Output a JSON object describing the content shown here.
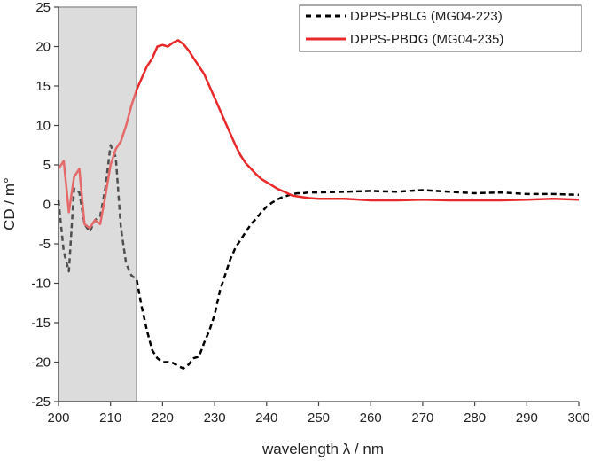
{
  "chart_data": {
    "type": "line",
    "xlabel": "wavelength λ / nm",
    "ylabel": "CD / m°",
    "xlim": [
      200,
      300
    ],
    "ylim": [
      -25,
      25
    ],
    "xticks": [
      200,
      210,
      220,
      230,
      240,
      250,
      260,
      270,
      280,
      290,
      300
    ],
    "yticks": [
      25,
      20,
      15,
      10,
      5,
      0,
      -5,
      -10,
      -15,
      -20,
      -25
    ],
    "xtick_labels": [
      "200",
      "210",
      "220",
      "230",
      "240",
      "250",
      "260",
      "270",
      "280",
      "290",
      "300"
    ],
    "ytick_labels": [
      "25",
      "20",
      "15",
      "10",
      "5",
      "0",
      "-5",
      "-10",
      "-15",
      "-20",
      "-25"
    ],
    "shaded_region": {
      "x": [
        200,
        215
      ],
      "color": "#d9d9d9"
    },
    "grid": false,
    "legend_position": "top-right",
    "series": [
      {
        "legend_parts": [
          "DPPS-PB",
          "L",
          "G (MG04-223)"
        ],
        "color": "#000000",
        "style": "dashed",
        "x": [
          200,
          201,
          202,
          203,
          204,
          205,
          206,
          207,
          208,
          209,
          210,
          211,
          212,
          213,
          214,
          215,
          216,
          217,
          218,
          219,
          220,
          221,
          222,
          223,
          224,
          225,
          226,
          227,
          228,
          229,
          230,
          231,
          232,
          233,
          234,
          235,
          236,
          237,
          238,
          239,
          240,
          241,
          242,
          243,
          244,
          245,
          246,
          247,
          248,
          250,
          255,
          260,
          265,
          270,
          275,
          280,
          285,
          290,
          295,
          300
        ],
        "y": [
          0.5,
          -6,
          -8.5,
          2,
          1.5,
          -2.5,
          -3.5,
          -2,
          -1.5,
          2,
          7.5,
          6,
          -3,
          -7.5,
          -9,
          -9.5,
          -13,
          -16,
          -18.5,
          -19.5,
          -20,
          -20,
          -20.1,
          -20.5,
          -20.8,
          -20.3,
          -19.5,
          -19.3,
          -17.5,
          -16,
          -14,
          -11,
          -9,
          -7,
          -5.5,
          -4.5,
          -3.5,
          -2.5,
          -1.8,
          -1,
          -0.3,
          0.2,
          0.6,
          0.9,
          1.1,
          1.3,
          1.4,
          1.4,
          1.5,
          1.5,
          1.6,
          1.7,
          1.6,
          1.8,
          1.6,
          1.4,
          1.5,
          1.3,
          1.3,
          1.2
        ]
      },
      {
        "legend_parts": [
          "DPPS-PB",
          "D",
          "G (MG04-235)"
        ],
        "color": "#e8292a",
        "style": "solid",
        "x": [
          200,
          201,
          202,
          203,
          204,
          205,
          206,
          207,
          208,
          209,
          210,
          211,
          212,
          213,
          214,
          215,
          216,
          217,
          218,
          219,
          220,
          221,
          222,
          223,
          224,
          225,
          226,
          227,
          228,
          229,
          230,
          231,
          232,
          233,
          234,
          235,
          236,
          237,
          238,
          239,
          240,
          241,
          242,
          243,
          244,
          245,
          246,
          247,
          248,
          250,
          255,
          260,
          265,
          270,
          275,
          280,
          285,
          290,
          295,
          300
        ],
        "y": [
          4.5,
          5.5,
          -1,
          3.5,
          4.5,
          -2.5,
          -3,
          -2,
          -2.5,
          1,
          5,
          7,
          8,
          10,
          12.5,
          14.5,
          16,
          17.5,
          18.5,
          20,
          20.2,
          20,
          20.5,
          20.8,
          20.3,
          19.5,
          18.5,
          17.5,
          16.5,
          15,
          13.5,
          12,
          10.5,
          9,
          7.5,
          6.2,
          5.2,
          4.5,
          3.8,
          3.2,
          2.8,
          2.4,
          2,
          1.7,
          1.4,
          1.1,
          1,
          0.9,
          0.8,
          0.7,
          0.7,
          0.5,
          0.5,
          0.6,
          0.5,
          0.5,
          0.5,
          0.6,
          0.7,
          0.6
        ]
      }
    ]
  }
}
